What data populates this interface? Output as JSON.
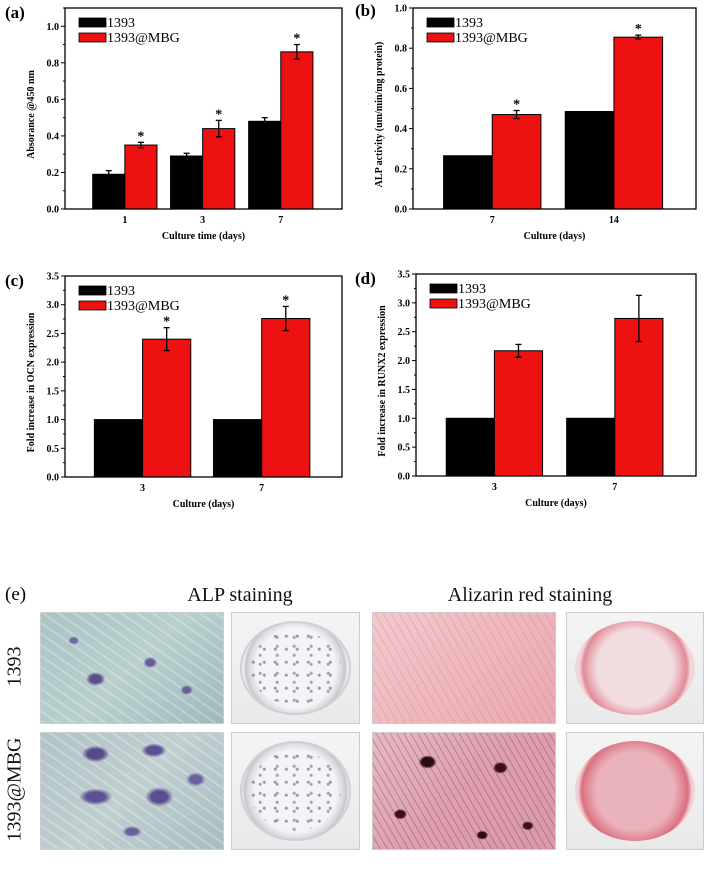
{
  "colors": {
    "series_1393": "#000000",
    "series_1393_mbg": "#ee1111"
  },
  "chart_data": [
    {
      "type": "bar",
      "panel": "(a)",
      "categories": [
        "1",
        "3",
        "7"
      ],
      "xlabel": "Culture time (days)",
      "ylabel": "Absorance @450 nm",
      "ylim": [
        0,
        1.1
      ],
      "yticks": [
        "0.0",
        "0.2",
        "0.4",
        "0.6",
        "0.8",
        "1.0"
      ],
      "ytick_values": [
        0,
        0.2,
        0.4,
        0.6,
        0.8,
        1.0
      ],
      "legend": "top-left",
      "series": [
        {
          "name": "1393",
          "values": [
            0.19,
            0.29,
            0.48
          ],
          "errors": [
            0.02,
            0.015,
            0.02
          ],
          "sig": [
            false,
            false,
            false
          ]
        },
        {
          "name": "1393@MBG",
          "values": [
            0.35,
            0.44,
            0.86
          ],
          "errors": [
            0.015,
            0.045,
            0.04
          ],
          "sig": [
            true,
            true,
            true
          ]
        }
      ],
      "sig_mark": "*"
    },
    {
      "type": "bar",
      "panel": "(b)",
      "categories": [
        "7",
        "14"
      ],
      "xlabel": "Culture (days)",
      "ylabel": "ALP activity (um/min/mg protein)",
      "ylim": [
        0,
        1.0
      ],
      "yticks": [
        "0.0",
        "0.2",
        "0.4",
        "0.6",
        "0.8",
        "1.0"
      ],
      "ytick_values": [
        0,
        0.2,
        0.4,
        0.6,
        0.8,
        1.0
      ],
      "legend": "top-left",
      "series": [
        {
          "name": "1393",
          "values": [
            0.265,
            0.485
          ],
          "errors": [
            0,
            0
          ],
          "sig": [
            false,
            false
          ]
        },
        {
          "name": "1393@MBG",
          "values": [
            0.47,
            0.855
          ],
          "errors": [
            0.02,
            0.01
          ],
          "sig": [
            true,
            true
          ]
        }
      ],
      "sig_mark": "*"
    },
    {
      "type": "bar",
      "panel": "(c)",
      "categories": [
        "3",
        "7"
      ],
      "xlabel": "Culture (days)",
      "ylabel": "Fold increase in OCN expression",
      "ylim": [
        0,
        3.5
      ],
      "yticks": [
        "0.0",
        "0.5",
        "1.0",
        "1.5",
        "2.0",
        "2.5",
        "3.0",
        "3.5"
      ],
      "ytick_values": [
        0,
        0.5,
        1.0,
        1.5,
        2.0,
        2.5,
        3.0,
        3.5
      ],
      "legend": "top-left",
      "series": [
        {
          "name": "1393",
          "values": [
            1.0,
            1.0
          ],
          "errors": [
            0,
            0
          ],
          "sig": [
            false,
            false
          ]
        },
        {
          "name": "1393@MBG",
          "values": [
            2.4,
            2.76
          ],
          "errors": [
            0.2,
            0.21
          ],
          "sig": [
            true,
            true
          ]
        }
      ],
      "sig_mark": "*"
    },
    {
      "type": "bar",
      "panel": "(d)",
      "categories": [
        "3",
        "7"
      ],
      "xlabel": "Culture (days)",
      "ylabel": "Fold increase in RUNX2 expression",
      "ylim": [
        0,
        3.5
      ],
      "yticks": [
        "0.0",
        "0.5",
        "1.0",
        "1.5",
        "2.0",
        "2.5",
        "3.0",
        "3.5"
      ],
      "ytick_values": [
        0,
        0.5,
        1.0,
        1.5,
        2.0,
        2.5,
        3.0,
        3.5
      ],
      "legend": "top-left",
      "series": [
        {
          "name": "1393",
          "values": [
            1.0,
            1.0
          ],
          "errors": [
            0,
            0
          ],
          "sig": [
            false,
            false
          ]
        },
        {
          "name": "1393@MBG",
          "values": [
            2.17,
            2.73
          ],
          "errors": [
            0.11,
            0.4
          ],
          "sig": [
            false,
            false
          ]
        }
      ],
      "sig_mark": "*"
    }
  ],
  "panel_e": {
    "label": "(e)",
    "col_headers": [
      "ALP staining",
      "Alizarin red staining"
    ],
    "row_labels": [
      "1393",
      "1393@MBG"
    ]
  }
}
